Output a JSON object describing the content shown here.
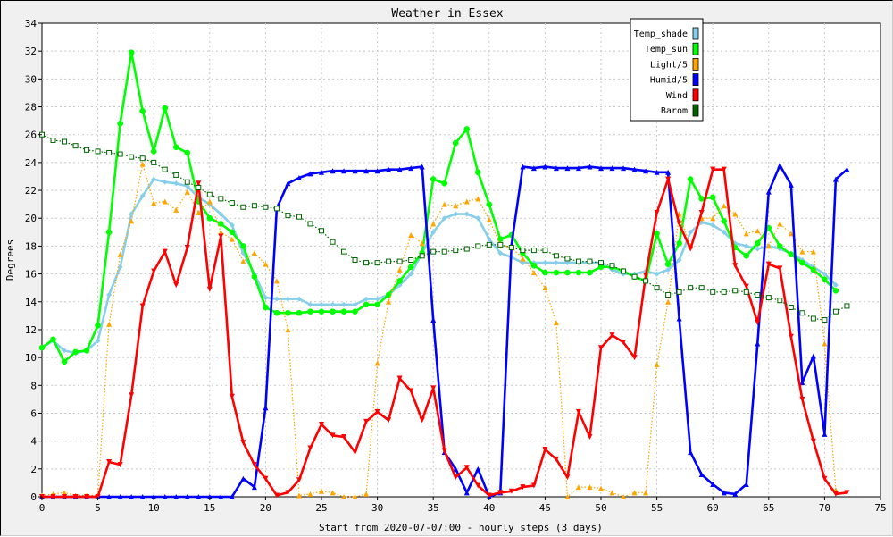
{
  "chart_data": {
    "type": "line",
    "title": "Weather in Essex",
    "xlabel": "Start from 2020-07-07:00 - hourly steps (3 days)",
    "ylabel": "Degrees",
    "xlim": [
      0,
      75
    ],
    "ylim": [
      0,
      34
    ],
    "x_ticks": [
      0,
      5,
      10,
      15,
      20,
      25,
      30,
      35,
      40,
      45,
      50,
      55,
      60,
      65,
      70,
      75
    ],
    "y_ticks": [
      0,
      2,
      4,
      6,
      8,
      10,
      12,
      14,
      16,
      18,
      20,
      22,
      24,
      26,
      28,
      30,
      32,
      34
    ],
    "grid": true,
    "legend_position": "top-right",
    "series": [
      {
        "name": "Temp_shade",
        "color": "#87ceeb",
        "line_style": "solid",
        "marker": "diamond",
        "values": [
          10.7,
          11.2,
          10.5,
          10.3,
          10.5,
          11.2,
          14.5,
          16.5,
          20.3,
          21.6,
          22.8,
          22.6,
          22.5,
          22.3,
          21.5,
          21.0,
          20.3,
          19.5,
          17.5,
          16.0,
          14.3,
          14.2,
          14.2,
          14.2,
          13.8,
          13.8,
          13.8,
          13.8,
          13.8,
          14.2,
          14.2,
          14.5,
          15.2,
          16.0,
          17.5,
          19.0,
          20.0,
          20.3,
          20.3,
          20.0,
          18.5,
          17.5,
          17.2,
          16.8,
          16.8,
          16.8,
          16.8,
          16.8,
          16.8,
          16.8,
          16.8,
          16.3,
          16.0,
          16.0,
          16.2,
          16.0,
          16.3,
          17.0,
          19.0,
          19.7,
          19.5,
          19.0,
          18.2,
          18.0,
          17.8,
          18.0,
          17.8,
          17.5,
          17.0,
          16.5,
          16.0,
          15.2
        ]
      },
      {
        "name": "Temp_sun",
        "color": "#00ff00",
        "line_style": "solid",
        "marker": "circle",
        "values": [
          10.7,
          11.3,
          9.7,
          10.4,
          10.5,
          12.3,
          19.0,
          26.8,
          31.9,
          27.7,
          24.8,
          27.9,
          25.1,
          24.7,
          21.2,
          20.0,
          19.6,
          19.0,
          18.0,
          15.8,
          13.6,
          13.2,
          13.2,
          13.2,
          13.3,
          13.3,
          13.3,
          13.3,
          13.3,
          13.8,
          13.8,
          14.5,
          15.5,
          16.5,
          17.5,
          22.8,
          22.5,
          25.4,
          26.4,
          23.3,
          21.0,
          18.5,
          18.8,
          17.5,
          16.6,
          16.1,
          16.1,
          16.1,
          16.1,
          16.1,
          16.5,
          16.5,
          16.2,
          15.8,
          15.5,
          18.9,
          16.7,
          18.2,
          22.8,
          21.4,
          21.5,
          19.8,
          17.9,
          17.3,
          18.2,
          19.3,
          18.0,
          17.4,
          16.8,
          16.3,
          15.6,
          14.8
        ]
      },
      {
        "name": "Light/5",
        "color": "#ffa500",
        "line_style": "dotted",
        "marker": "triangle-up",
        "values": [
          0.1,
          0.2,
          0.3,
          0.1,
          0.1,
          0.1,
          12.4,
          17.4,
          19.8,
          23.9,
          21.1,
          21.2,
          20.6,
          21.9,
          20.4,
          21.2,
          19.0,
          18.5,
          16.9,
          17.5,
          16.7,
          15.5,
          12.0,
          0.1,
          0.2,
          0.4,
          0.3,
          0.0,
          0.0,
          0.2,
          9.6,
          14.0,
          16.3,
          18.8,
          18.2,
          19.6,
          21.0,
          20.9,
          21.2,
          21.4,
          19.9,
          18.1,
          17.9,
          17.1,
          16.1,
          15.0,
          12.5,
          0.0,
          0.7,
          0.7,
          0.6,
          0.3,
          0.0,
          0.3,
          0.3,
          9.5,
          14.0,
          20.3,
          18.0,
          20.0,
          20.0,
          20.9,
          20.3,
          18.9,
          19.1,
          18.0,
          19.6,
          18.9,
          17.6,
          17.6,
          11.0,
          0.5
        ]
      },
      {
        "name": "Humid/5",
        "color": "#0000ff",
        "line_style": "solid",
        "marker": "triangle-up",
        "values": [
          0,
          0,
          0,
          0,
          0,
          0,
          0,
          0,
          0,
          0,
          0,
          0,
          0,
          0,
          0,
          0,
          0,
          0,
          1.3,
          0.7,
          6.4,
          20.7,
          22.5,
          22.9,
          23.2,
          23.3,
          23.4,
          23.4,
          23.4,
          23.4,
          23.4,
          23.5,
          23.5,
          23.6,
          23.7,
          12.7,
          3.2,
          2.0,
          0.3,
          2.0,
          0.0,
          0.3,
          18.1,
          23.7,
          23.6,
          23.7,
          23.6,
          23.6,
          23.6,
          23.7,
          23.6,
          23.6,
          23.6,
          23.5,
          23.4,
          23.3,
          23.3,
          12.8,
          3.2,
          1.6,
          0.9,
          0.3,
          0.2,
          0.9,
          11.0,
          21.9,
          23.8,
          22.4,
          8.2,
          10.1,
          4.5,
          22.8,
          23.5
        ]
      },
      {
        "name": "Wind",
        "color": "#ff0000",
        "line_style": "solid",
        "marker": "triangle-down",
        "values": [
          0,
          0,
          0,
          0,
          0,
          0,
          2.5,
          2.3,
          7.3,
          13.7,
          16.2,
          17.6,
          15.2,
          17.9,
          22.5,
          14.9,
          18.7,
          7.2,
          3.9,
          2.3,
          1.3,
          0.1,
          0.3,
          1.2,
          3.5,
          5.2,
          4.4,
          4.3,
          3.2,
          5.4,
          6.1,
          5.5,
          8.5,
          7.6,
          5.5,
          7.8,
          3.3,
          1.4,
          2.1,
          0.8,
          0.1,
          0.3,
          0.4,
          0.7,
          0.8,
          3.4,
          2.7,
          1.4,
          6.1,
          4.3,
          10.7,
          11.6,
          11.1,
          10.0,
          15.9,
          20.4,
          22.8,
          19.6,
          17.8,
          20.4,
          23.5,
          23.5,
          16.6,
          15.1,
          12.5,
          16.7,
          16.4,
          11.5,
          7.0,
          4.0,
          1.3,
          0.2,
          0.3
        ]
      },
      {
        "name": "Barom",
        "color": "#006400",
        "line_style": "dotted",
        "marker": "square",
        "values": [
          26.0,
          25.6,
          25.5,
          25.2,
          24.9,
          24.8,
          24.7,
          24.6,
          24.4,
          24.3,
          24.0,
          23.5,
          23.1,
          22.6,
          22.2,
          21.7,
          21.4,
          21.1,
          20.8,
          20.9,
          20.8,
          20.7,
          20.2,
          20.1,
          19.6,
          19.1,
          18.3,
          17.6,
          17.0,
          16.8,
          16.8,
          16.9,
          16.9,
          17.0,
          17.3,
          17.6,
          17.6,
          17.7,
          17.8,
          18.0,
          18.1,
          18.1,
          17.9,
          17.7,
          17.7,
          17.7,
          17.3,
          17.1,
          16.9,
          16.9,
          16.8,
          16.6,
          16.2,
          15.8,
          15.5,
          15.0,
          14.5,
          14.7,
          15.0,
          15.0,
          14.7,
          14.7,
          14.8,
          14.7,
          14.5,
          14.3,
          14.1,
          13.6,
          13.2,
          12.8,
          12.7,
          13.3,
          13.7
        ]
      }
    ]
  }
}
